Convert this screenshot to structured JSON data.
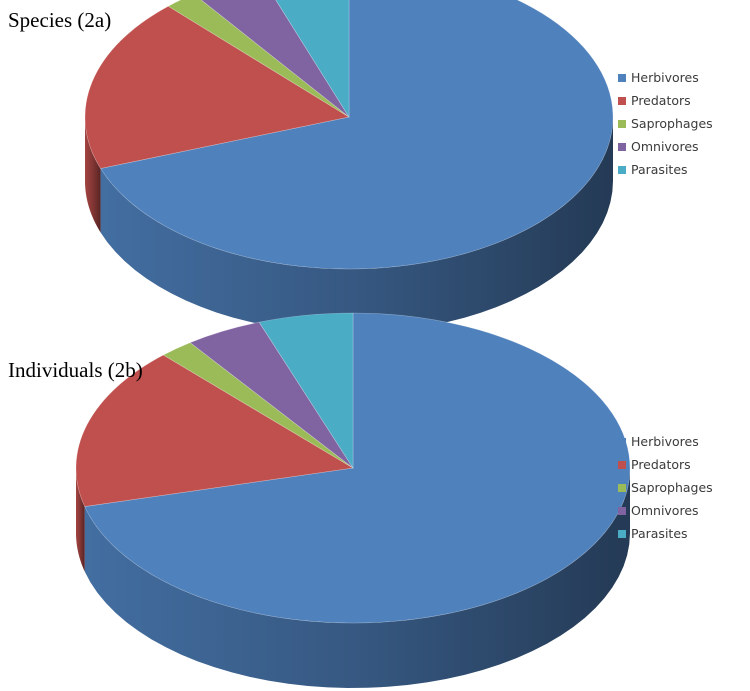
{
  "chart_data": [
    {
      "type": "pie",
      "title": "Species (2a)",
      "legend_position": "right",
      "categories": [
        "Herbivores",
        "Predators",
        "Saprophages",
        "Omnivores",
        "Parasites"
      ],
      "values": [
        69.5,
        18.5,
        2,
        4.5,
        5.5
      ],
      "colors": [
        "#4F81BD",
        "#C0504D",
        "#9BBB59",
        "#8064A2",
        "#4BACC6"
      ]
    },
    {
      "type": "pie",
      "title": "Individuals (2b)",
      "legend_position": "right",
      "categories": [
        "Herbivores",
        "Predators",
        "Saprophages",
        "Omnivores",
        "Parasites"
      ],
      "values": [
        71,
        17,
        2,
        4.5,
        5.5
      ],
      "colors": [
        "#4F81BD",
        "#C0504D",
        "#9BBB59",
        "#8064A2",
        "#4BACC6"
      ]
    }
  ]
}
